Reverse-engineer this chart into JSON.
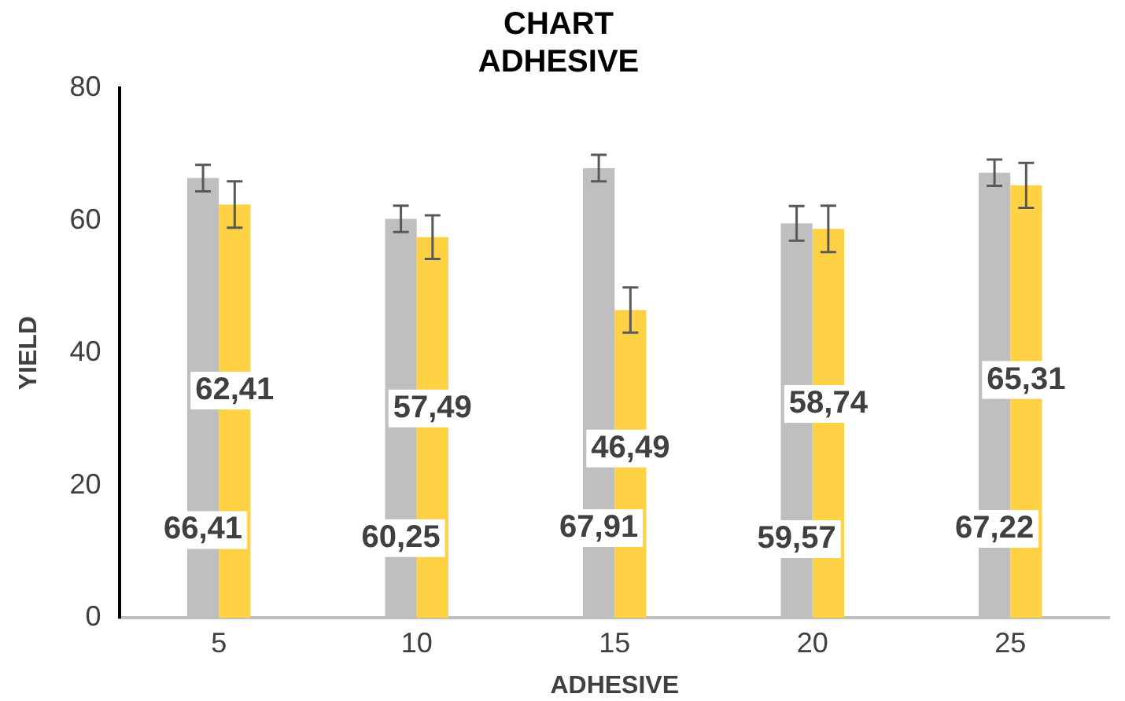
{
  "chart_data": {
    "type": "bar",
    "title": "CHART ADHESIVE",
    "xlabel": "ADHESIVE",
    "ylabel": "YIELD",
    "categories": [
      "5",
      "10",
      "15",
      "20",
      "25"
    ],
    "series": [
      {
        "color": "#bfbfbf",
        "values": [
          66.41,
          60.25,
          67.91,
          59.57,
          67.22
        ],
        "errors": [
          2,
          2,
          2,
          2.6,
          2
        ],
        "value_labels": [
          "66,41",
          "60,25",
          "67,91",
          "59,57",
          "67,22"
        ]
      },
      {
        "color": "#ffd145",
        "values": [
          62.41,
          57.49,
          46.49,
          58.74,
          65.31
        ],
        "errors": [
          3.5,
          3.3,
          3.4,
          3.5,
          3.4
        ],
        "value_labels": [
          "62,41",
          "57,49",
          "46,49",
          "58,74",
          "65,31"
        ]
      }
    ],
    "ylim": [
      0,
      80
    ],
    "yticks": [
      0,
      20,
      40,
      60,
      80
    ],
    "grid": false,
    "legend": false
  }
}
